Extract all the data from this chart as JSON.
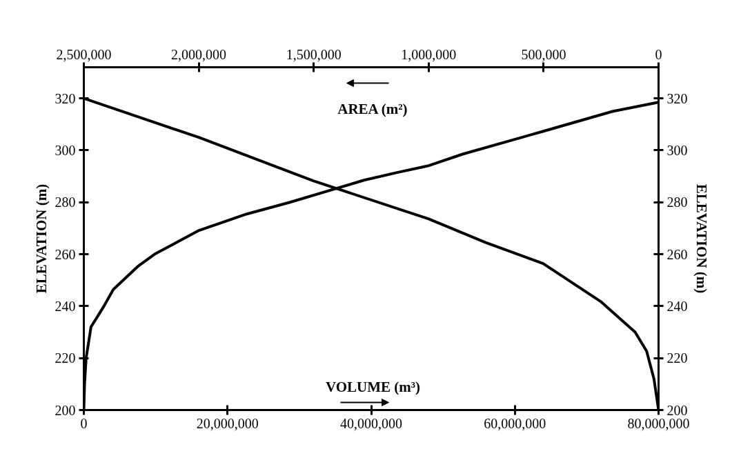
{
  "chart_data": {
    "type": "line",
    "xlabel": "VOLUME (m³)",
    "ylabel": "ELEVATION (m)",
    "x2label": "AREA (m²)",
    "y2label": "ELEVATION (m)",
    "xlim": [
      0,
      80000000
    ],
    "xticks": [
      0,
      {
        "value": 20000000,
        "label": "20,000,000"
      },
      {
        "value": 40000000,
        "label": "40,000,000"
      },
      {
        "value": 60000000,
        "label": "60,000,000"
      },
      {
        "value": 80000000,
        "label": "80,000,000"
      }
    ],
    "x2lim": [
      2500000,
      0
    ],
    "x2ticks": [
      {
        "value": 2500000,
        "label": "2,500,000"
      },
      {
        "value": 2000000,
        "label": "2,000,000"
      },
      {
        "value": 1500000,
        "label": "1,500,000"
      },
      {
        "value": 1000000,
        "label": "1,000,000"
      },
      {
        "value": 500000,
        "label": "500,000"
      },
      0
    ],
    "ylim": [
      200,
      332
    ],
    "yticks": [
      200,
      220,
      240,
      260,
      280,
      300,
      320
    ],
    "y2lim": [
      200,
      332
    ],
    "y2ticks": [
      200,
      220,
      240,
      260,
      280,
      300,
      320
    ],
    "line_style": "solid",
    "series": [
      {
        "color": "#000000",
        "x": [
          0,
          100000,
          320000,
          1000000,
          2800000,
          4100000,
          7600000,
          9850000,
          15900000,
          22700000,
          28700000,
          35500000,
          39000000,
          43500000,
          48000000,
          52800000,
          63900000,
          73600000,
          80000000
        ],
        "values": [
          200,
          210,
          220,
          232,
          240,
          246.4,
          255.5,
          260,
          269,
          275.5,
          280,
          285.6,
          288.5,
          291.4,
          294.1,
          298.6,
          307.3,
          315,
          318.5
        ]
      },
      {
        "color": "#000000",
        "axis": "x2",
        "x": [
          2500000,
          2000000,
          1500000,
          1000000,
          752000,
          502000,
          252000,
          102000,
          52000,
          20000,
          0
        ],
        "values": [
          320,
          305,
          288.2,
          273.6,
          264.5,
          256.4,
          241.8,
          230,
          222.7,
          212,
          200
        ]
      }
    ]
  }
}
